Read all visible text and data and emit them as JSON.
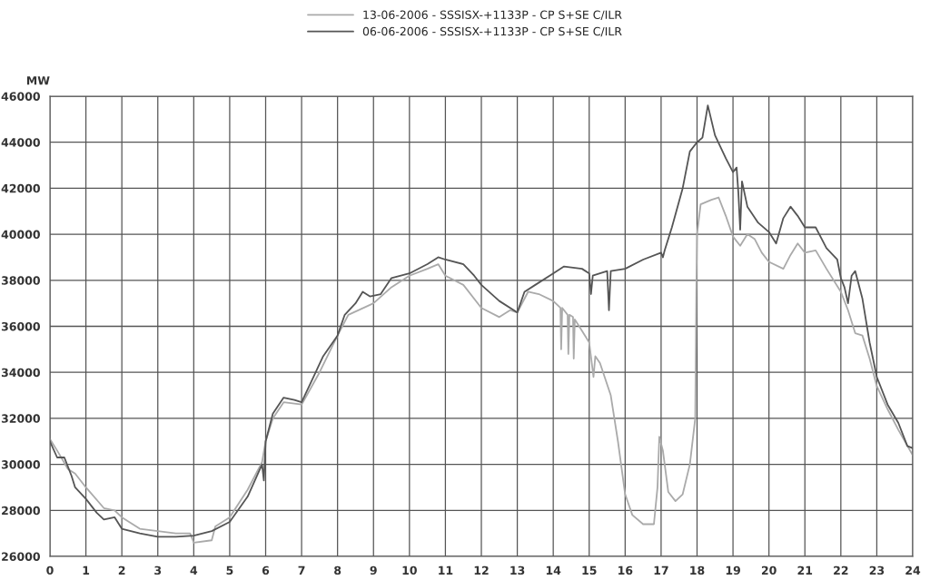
{
  "chart_data": {
    "type": "line",
    "ylabel": "MW",
    "legend": "top",
    "grid": true,
    "line_style": "solid",
    "marker": "none",
    "xlim": [
      0,
      24
    ],
    "xticks": [
      0,
      1,
      2,
      3,
      4,
      5,
      6,
      7,
      8,
      9,
      10,
      11,
      12,
      13,
      14,
      15,
      16,
      17,
      18,
      19,
      20,
      21,
      22,
      23,
      24
    ],
    "ylim": [
      26000,
      46000
    ],
    "yticks": [
      26000,
      28000,
      30000,
      32000,
      34000,
      36000,
      38000,
      40000,
      42000,
      44000,
      46000
    ],
    "series": [
      {
        "name": "13-06-2006 - SSSISX-+1133P - CP S+SE C/ILR",
        "color": "#aaaaaa",
        "x": [
          0,
          0.2,
          0.5,
          0.7,
          1,
          1.5,
          1.8,
          2,
          2.5,
          3,
          3.5,
          3.9,
          4,
          4.5,
          4.6,
          5,
          5.5,
          5.9,
          6,
          6.2,
          6.5,
          7,
          7.5,
          8,
          8.3,
          9,
          9.5,
          10,
          10.5,
          10.8,
          11,
          11.5,
          12,
          12.5,
          12.8,
          13,
          13.3,
          13.6,
          14,
          14.2,
          14.22,
          14.25,
          14.4,
          14.42,
          14.45,
          14.55,
          14.57,
          14.6,
          14.8,
          15,
          15.12,
          15.17,
          15.3,
          15.6,
          15.8,
          16,
          16.2,
          16.5,
          16.8,
          16.9,
          16.95,
          17.05,
          17.2,
          17.4,
          17.6,
          17.8,
          17.95,
          17.98,
          18,
          18.1,
          18.4,
          18.6,
          18.8,
          19,
          19.2,
          19.4,
          19.6,
          19.8,
          20,
          20.4,
          20.6,
          20.8,
          21,
          21.3,
          21.6,
          22,
          22.2,
          22.4,
          22.6,
          22.8,
          23,
          23.3,
          23.6,
          24
        ],
        "values": [
          31100,
          30600,
          29800,
          29600,
          29000,
          28100,
          28000,
          27700,
          27200,
          27100,
          27000,
          27000,
          26600,
          26700,
          27300,
          27700,
          28900,
          30100,
          31000,
          32000,
          32700,
          32600,
          34000,
          35600,
          36500,
          37000,
          37700,
          38200,
          38500,
          38700,
          38200,
          37800,
          36800,
          36400,
          36700,
          36600,
          37500,
          37400,
          37100,
          36800,
          35000,
          36800,
          36500,
          34800,
          36500,
          36400,
          34600,
          36300,
          35800,
          35300,
          33800,
          34700,
          34400,
          33000,
          31000,
          28700,
          27800,
          27400,
          27400,
          29000,
          31200,
          30600,
          28800,
          28400,
          28700,
          30000,
          32000,
          37500,
          40000,
          41300,
          41500,
          41600,
          40800,
          39900,
          39500,
          40000,
          39800,
          39200,
          38800,
          38500,
          39100,
          39600,
          39200,
          39300,
          38500,
          37500,
          36700,
          35700,
          35600,
          34600,
          33400,
          32400,
          31500,
          30400
        ]
      },
      {
        "name": "06-06-2006 - SSSISX-+1133P - CP S+SE C/ILR",
        "color": "#555555",
        "x": [
          0,
          0.2,
          0.4,
          0.6,
          0.7,
          1,
          1.3,
          1.5,
          1.8,
          2,
          2.5,
          3,
          3.5,
          4,
          4.5,
          5,
          5.5,
          5.9,
          5.95,
          6,
          6.2,
          6.5,
          6.8,
          7,
          7.3,
          7.6,
          8,
          8.2,
          8.5,
          8.7,
          8.9,
          9.2,
          9.5,
          10,
          10.5,
          10.8,
          11,
          11.5,
          11.8,
          12,
          12.5,
          13,
          13.2,
          13.5,
          14,
          14.3,
          14.8,
          15,
          15.05,
          15.1,
          15.5,
          15.55,
          15.6,
          16,
          16.5,
          17,
          17.05,
          17.1,
          17.3,
          17.6,
          17.8,
          18,
          18.15,
          18.3,
          18.5,
          18.8,
          19,
          19.1,
          19.15,
          19.2,
          19.25,
          19.4,
          19.7,
          20,
          20.2,
          20.4,
          20.6,
          20.8,
          21,
          21.3,
          21.6,
          21.9,
          22,
          22.1,
          22.2,
          22.3,
          22.4,
          22.6,
          22.8,
          23,
          23.3,
          23.6,
          23.85,
          24
        ],
        "values": [
          31000,
          30300,
          30300,
          29500,
          29000,
          28500,
          27900,
          27600,
          27700,
          27200,
          27000,
          26850,
          26850,
          26900,
          27100,
          27500,
          28600,
          30000,
          29300,
          31000,
          32200,
          32900,
          32800,
          32700,
          33700,
          34700,
          35600,
          36500,
          37000,
          37500,
          37300,
          37400,
          38100,
          38300,
          38700,
          39000,
          38900,
          38700,
          38200,
          37800,
          37100,
          36600,
          37500,
          37800,
          38300,
          38600,
          38500,
          38300,
          37400,
          38200,
          38400,
          36700,
          38400,
          38500,
          38900,
          39200,
          39000,
          39300,
          40300,
          42000,
          43600,
          44000,
          44200,
          45600,
          44300,
          43300,
          42700,
          42900,
          41800,
          40200,
          42300,
          41200,
          40500,
          40100,
          39600,
          40700,
          41200,
          40800,
          40300,
          40300,
          39400,
          38900,
          38100,
          37700,
          37000,
          38200,
          38400,
          37200,
          35300,
          33800,
          32600,
          31800,
          30800,
          30700
        ]
      }
    ]
  }
}
